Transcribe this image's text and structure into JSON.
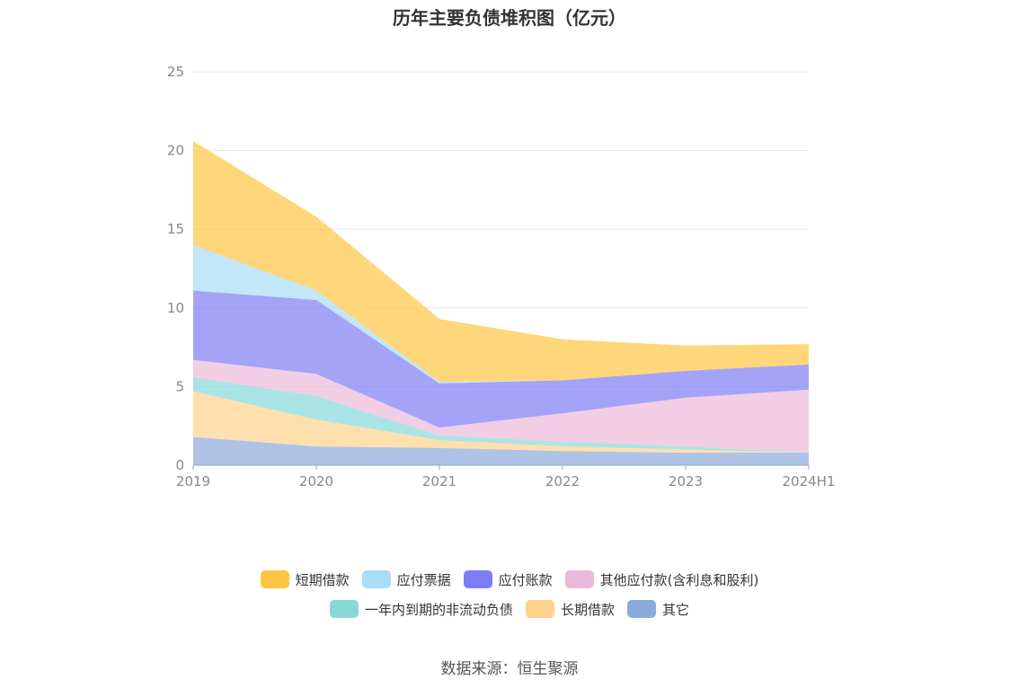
{
  "source": "数据来源：恒生聚源",
  "chart_data": {
    "type": "area",
    "stacked": true,
    "title": "历年主要负债堆积图（亿元）",
    "categories": [
      "2019",
      "2020",
      "2021",
      "2022",
      "2023",
      "2024H1"
    ],
    "ylim": [
      0,
      25
    ],
    "yticks": [
      0,
      5,
      10,
      15,
      20,
      25
    ],
    "grid": true,
    "legend_position": "bottom",
    "series": [
      {
        "name": "其它",
        "color": "#8caadc",
        "values": [
          1.8,
          1.2,
          1.1,
          0.9,
          0.8,
          0.8
        ]
      },
      {
        "name": "长期借款",
        "color": "#ffd28c",
        "values": [
          2.9,
          1.7,
          0.5,
          0.3,
          0.2,
          0.0
        ]
      },
      {
        "name": "一年内到期的非流动负债",
        "color": "#88d8d8",
        "values": [
          0.9,
          1.5,
          0.3,
          0.3,
          0.2,
          0.0
        ]
      },
      {
        "name": "其他应付款(含利息和股利)",
        "color": "#ebb9d9",
        "values": [
          1.1,
          1.4,
          0.5,
          1.8,
          3.1,
          4.0
        ]
      },
      {
        "name": "应付账款",
        "color": "#7e7cf5",
        "values": [
          4.4,
          4.7,
          2.8,
          2.1,
          1.7,
          1.6
        ]
      },
      {
        "name": "应付票据",
        "color": "#a7ddf7",
        "values": [
          2.9,
          0.6,
          0.1,
          0.0,
          0.0,
          0.0
        ]
      },
      {
        "name": "短期借款",
        "color": "#ffc542",
        "values": [
          6.6,
          4.7,
          4.0,
          2.6,
          1.6,
          1.3
        ]
      }
    ]
  },
  "legend": {
    "row1": [
      {
        "name": "短期借款",
        "color": "#ffc542"
      },
      {
        "name": "应付票据",
        "color": "#a7ddf7"
      },
      {
        "name": "应付账款",
        "color": "#7e7cf5"
      },
      {
        "name": "其他应付款(含利息和股利)",
        "color": "#ebb9d9"
      }
    ],
    "row2": [
      {
        "name": "一年内到期的非流动负债",
        "color": "#88d8d8"
      },
      {
        "name": "长期借款",
        "color": "#ffd28c"
      },
      {
        "name": "其它",
        "color": "#8caadc"
      }
    ]
  }
}
